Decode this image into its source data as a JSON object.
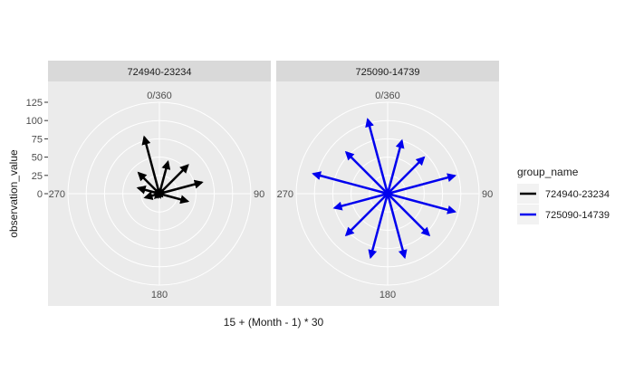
{
  "chart_data": {
    "type": "polar-arrows",
    "xlabel": "15 + (Month - 1) * 30",
    "ylabel": "observation_value",
    "rlim": [
      0,
      125
    ],
    "r_ticks": [
      0,
      25,
      50,
      75,
      100,
      125
    ],
    "angle_labels": [
      "0/360",
      "90",
      "180",
      "270"
    ],
    "grid": true,
    "legend": {
      "title": "group_name",
      "position": "right",
      "entries": [
        "724940-23234",
        "725090-14739"
      ]
    },
    "panels": [
      {
        "strip": "724940-23234",
        "color": "#000000",
        "angles": [
          15,
          45,
          75,
          105,
          135,
          165,
          195,
          225,
          255,
          285,
          315,
          345
        ],
        "values": [
          45,
          55,
          60,
          40,
          5,
          5,
          5,
          8,
          20,
          30,
          40,
          80
        ]
      },
      {
        "strip": "725090-14739",
        "color": "#0000ee",
        "angles": [
          15,
          45,
          75,
          105,
          135,
          165,
          195,
          225,
          255,
          285,
          315,
          345
        ],
        "values": [
          75,
          70,
          95,
          95,
          80,
          90,
          90,
          80,
          75,
          105,
          80,
          105
        ]
      }
    ]
  }
}
